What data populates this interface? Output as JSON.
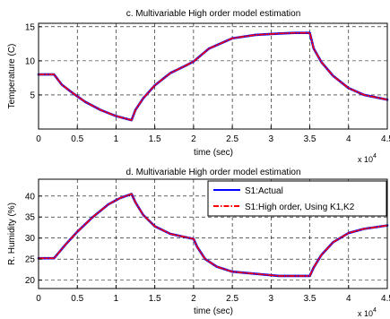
{
  "chart_data": [
    {
      "type": "line",
      "title": "c. Multivariable High order model estimation",
      "xlabel": "time (sec)",
      "ylabel": "Temperature (C)",
      "x_exponent_base": "x 10",
      "x_exponent_power": "4",
      "xlim": [
        0,
        4.5
      ],
      "ylim": [
        0,
        15.5
      ],
      "xticks": [
        "0",
        "0.5",
        "1",
        "1.5",
        "2",
        "2.5",
        "3",
        "3.5",
        "4",
        "4.5"
      ],
      "yticks": [
        "5",
        "10",
        "15"
      ],
      "grid": true,
      "series": [
        {
          "color": "#0000ff",
          "style": "solid",
          "x": [
            0,
            0.2,
            0.3,
            0.45,
            0.6,
            0.8,
            1.0,
            1.2,
            1.25,
            1.35,
            1.5,
            1.7,
            1.9,
            2.0,
            2.2,
            2.5,
            2.8,
            3.1,
            3.3,
            3.5,
            3.55,
            3.65,
            3.8,
            4.0,
            4.2,
            4.5
          ],
          "y": [
            8.0,
            8.0,
            6.5,
            5.2,
            4.0,
            2.8,
            1.9,
            1.3,
            2.8,
            4.5,
            6.4,
            8.2,
            9.3,
            9.9,
            11.8,
            13.3,
            13.8,
            14.0,
            14.1,
            14.1,
            11.8,
            9.8,
            7.8,
            6.0,
            5.0,
            4.3
          ]
        },
        {
          "color": "#ff0000",
          "style": "dashdot",
          "x": [
            0,
            0.2,
            0.3,
            0.45,
            0.6,
            0.8,
            1.0,
            1.2,
            1.25,
            1.35,
            1.5,
            1.7,
            1.9,
            2.0,
            2.2,
            2.5,
            2.8,
            3.1,
            3.3,
            3.5,
            3.55,
            3.65,
            3.8,
            4.0,
            4.2,
            4.5
          ],
          "y": [
            8.0,
            8.0,
            6.5,
            5.2,
            4.0,
            2.8,
            1.9,
            1.3,
            2.8,
            4.5,
            6.4,
            8.2,
            9.3,
            9.9,
            11.8,
            13.3,
            13.8,
            14.0,
            14.1,
            14.1,
            11.8,
            9.8,
            7.8,
            6.0,
            5.0,
            4.3
          ]
        }
      ]
    },
    {
      "type": "line",
      "title": "d. Multivariable High order model estimation",
      "xlabel": "time (sec)",
      "ylabel": "R. Humidity (%)",
      "x_exponent_base": "x 10",
      "x_exponent_power": "4",
      "xlim": [
        0,
        4.5
      ],
      "ylim": [
        18,
        44
      ],
      "xticks": [
        "0",
        "0.5",
        "1",
        "1.5",
        "2",
        "2.5",
        "3",
        "3.5",
        "4",
        "4.5"
      ],
      "yticks": [
        "20",
        "25",
        "30",
        "35",
        "40"
      ],
      "grid": true,
      "legend": {
        "placement": "top-right",
        "entries": [
          "S1:Actual",
          "S1:High order, Using K1,K2"
        ]
      },
      "series": [
        {
          "name": "S1:Actual",
          "color": "#0000ff",
          "style": "solid",
          "x": [
            0,
            0.2,
            0.35,
            0.5,
            0.7,
            0.9,
            1.05,
            1.2,
            1.25,
            1.35,
            1.5,
            1.7,
            1.9,
            2.0,
            2.05,
            2.15,
            2.3,
            2.5,
            2.8,
            3.1,
            3.4,
            3.5,
            3.55,
            3.65,
            3.8,
            4.0,
            4.2,
            4.5
          ],
          "y": [
            25.2,
            25.2,
            28.5,
            31.5,
            35.0,
            38.0,
            39.5,
            40.5,
            38.5,
            35.5,
            32.8,
            31.0,
            30.2,
            29.8,
            27.8,
            25.0,
            23.2,
            22.0,
            21.5,
            21.0,
            21.0,
            21.0,
            23.0,
            26.0,
            29.0,
            31.2,
            32.2,
            33.0
          ]
        },
        {
          "name": "S1:High order, Using K1,K2",
          "color": "#ff0000",
          "style": "dashdot",
          "x": [
            0,
            0.2,
            0.35,
            0.5,
            0.7,
            0.9,
            1.05,
            1.2,
            1.25,
            1.35,
            1.5,
            1.7,
            1.9,
            2.0,
            2.05,
            2.15,
            2.3,
            2.5,
            2.8,
            3.1,
            3.4,
            3.5,
            3.55,
            3.65,
            3.8,
            4.0,
            4.2,
            4.5
          ],
          "y": [
            25.2,
            25.2,
            28.5,
            31.5,
            35.0,
            38.0,
            39.5,
            40.5,
            38.5,
            35.5,
            32.8,
            31.0,
            30.2,
            29.8,
            27.8,
            25.0,
            23.2,
            22.0,
            21.5,
            21.0,
            21.0,
            21.0,
            23.0,
            26.0,
            29.0,
            31.2,
            32.2,
            33.0
          ]
        }
      ]
    }
  ]
}
